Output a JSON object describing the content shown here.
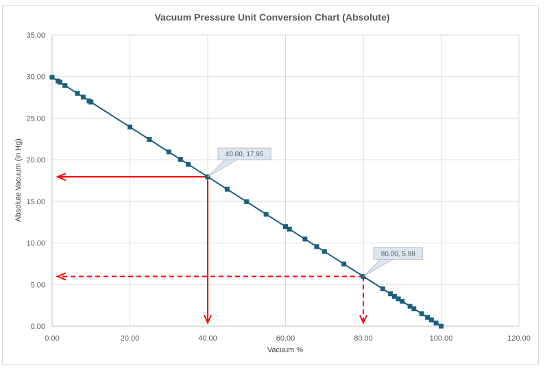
{
  "chart_data": {
    "type": "scatter",
    "title": "Vacuum Pressure Unit Conversion Chart (Absolute)",
    "xlabel": "Vacuum %",
    "ylabel": "Absolute Vacuum (in Hg)",
    "xlim": [
      0,
      120
    ],
    "ylim": [
      0,
      35
    ],
    "xticks": [
      "0.00",
      "20.00",
      "40.00",
      "60.00",
      "80.00",
      "100.00",
      "120.00"
    ],
    "yticks": [
      "0.00",
      "5.00",
      "10.00",
      "15.00",
      "20.00",
      "25.00",
      "30.00",
      "35.00"
    ],
    "grid": true,
    "series": [
      {
        "name": "Absolute Vacuum",
        "color": "#1b5e80",
        "x": [
          0,
          1.5,
          2,
          3.3,
          6.5,
          8,
          9.5,
          10,
          20,
          25,
          30,
          33,
          35,
          40,
          45,
          50,
          55,
          60,
          61,
          65,
          68,
          70,
          75,
          80,
          85,
          87,
          88,
          89,
          90,
          92,
          93,
          95,
          96.5,
          97.5,
          98.7,
          100
        ],
        "y": [
          29.92,
          29.47,
          29.32,
          28.93,
          27.98,
          27.53,
          27.08,
          26.93,
          23.94,
          22.44,
          20.94,
          20.05,
          19.45,
          17.95,
          16.46,
          14.96,
          13.46,
          11.97,
          11.67,
          10.47,
          9.57,
          8.98,
          7.48,
          5.98,
          4.49,
          3.89,
          3.59,
          3.29,
          2.99,
          2.39,
          2.09,
          1.5,
          1.05,
          0.75,
          0.39,
          0.0
        ]
      }
    ],
    "annotations": [
      {
        "label": "40.00, 17.95",
        "x": 40,
        "y": 17.95,
        "style": "solid",
        "color": "#ff0000"
      },
      {
        "label": "80.00, 5.98",
        "x": 80,
        "y": 5.98,
        "style": "dashed",
        "color": "#ff0000"
      }
    ]
  }
}
